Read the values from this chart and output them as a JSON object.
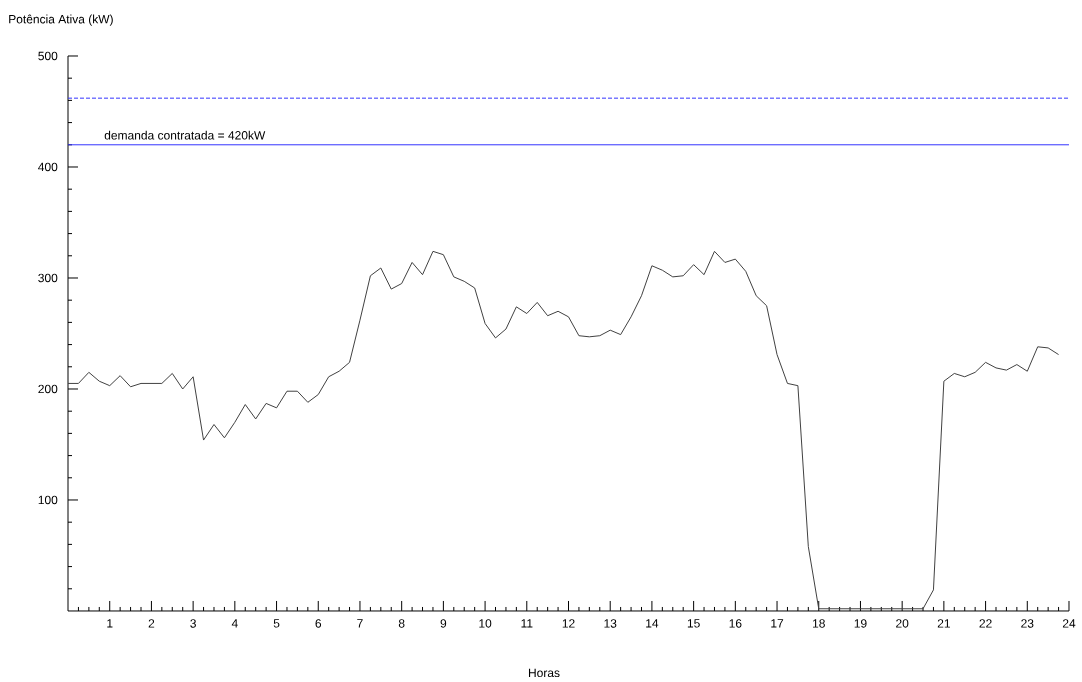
{
  "chart_data": {
    "type": "line",
    "ylabel": "Potência Ativa (kW)",
    "xlabel": "Horas",
    "x": [
      0,
      0.25,
      0.5,
      0.75,
      1,
      1.25,
      1.5,
      1.75,
      2,
      2.25,
      2.5,
      2.75,
      3,
      3.25,
      3.5,
      3.75,
      4,
      4.25,
      4.5,
      4.75,
      5,
      5.25,
      5.5,
      5.75,
      6,
      6.25,
      6.5,
      6.75,
      7,
      7.25,
      7.5,
      7.75,
      8,
      8.25,
      8.5,
      8.75,
      9,
      9.25,
      9.5,
      9.75,
      10,
      10.25,
      10.5,
      10.75,
      11,
      11.25,
      11.5,
      11.75,
      12,
      12.25,
      12.5,
      12.75,
      13,
      13.25,
      13.5,
      13.75,
      14,
      14.25,
      14.5,
      14.75,
      15,
      15.25,
      15.5,
      15.75,
      16,
      16.25,
      16.5,
      16.75,
      17,
      17.25,
      17.5,
      17.75,
      18,
      18.25,
      18.5,
      18.75,
      19,
      19.25,
      19.5,
      19.75,
      20,
      20.25,
      20.5,
      20.75,
      21,
      21.25,
      21.5,
      21.75,
      22,
      22.25,
      22.5,
      22.75,
      23,
      23.25,
      23.5,
      23.75
    ],
    "series": [
      {
        "color": "#404040",
        "values": [
          205,
          205,
          215,
          207,
          203,
          212,
          202,
          205,
          205,
          205,
          214,
          200,
          211,
          154,
          168,
          156,
          170,
          186,
          173,
          187,
          183,
          198,
          198,
          188,
          195,
          211,
          216,
          224,
          262,
          302,
          309,
          290,
          295,
          314,
          303,
          324,
          321,
          301,
          297,
          291,
          259,
          246,
          254,
          274,
          268,
          278,
          266,
          270,
          265,
          248,
          247,
          248,
          253,
          249,
          265,
          284,
          311,
          307,
          301,
          302,
          312,
          303,
          324,
          314,
          317,
          306,
          284,
          275,
          231,
          205,
          203,
          58,
          2,
          2,
          2,
          2,
          2,
          2,
          2,
          2,
          2,
          2,
          2,
          19,
          207,
          214,
          211,
          215,
          224,
          219,
          217,
          222,
          216,
          238,
          237,
          231
        ]
      }
    ],
    "xlim": [
      0,
      24
    ],
    "ylim": [
      0,
      500
    ],
    "xticks": [
      1,
      2,
      3,
      4,
      5,
      6,
      7,
      8,
      9,
      10,
      11,
      12,
      13,
      14,
      15,
      16,
      17,
      18,
      19,
      20,
      21,
      22,
      23,
      24,
      {
        "value": 0.25,
        "label": null
      },
      {
        "value": 0.5,
        "label": null
      },
      {
        "value": 0.75,
        "label": null
      },
      {
        "value": 1.25,
        "label": null
      },
      {
        "value": 1.5,
        "label": null
      },
      {
        "value": 1.75,
        "label": null
      },
      {
        "value": 2.25,
        "label": null
      },
      {
        "value": 2.5,
        "label": null
      },
      {
        "value": 2.75,
        "label": null
      },
      {
        "value": 3.25,
        "label": null
      },
      {
        "value": 3.5,
        "label": null
      },
      {
        "value": 3.75,
        "label": null
      },
      {
        "value": 4.25,
        "label": null
      },
      {
        "value": 4.5,
        "label": null
      },
      {
        "value": 4.75,
        "label": null
      },
      {
        "value": 5.25,
        "label": null
      },
      {
        "value": 5.5,
        "label": null
      },
      {
        "value": 5.75,
        "label": null
      },
      {
        "value": 6.25,
        "label": null
      },
      {
        "value": 6.5,
        "label": null
      },
      {
        "value": 6.75,
        "label": null
      },
      {
        "value": 7.25,
        "label": null
      },
      {
        "value": 7.5,
        "label": null
      },
      {
        "value": 7.75,
        "label": null
      },
      {
        "value": 8.25,
        "label": null
      },
      {
        "value": 8.5,
        "label": null
      },
      {
        "value": 8.75,
        "label": null
      },
      {
        "value": 9.25,
        "label": null
      },
      {
        "value": 9.5,
        "label": null
      },
      {
        "value": 9.75,
        "label": null
      },
      {
        "value": 10.25,
        "label": null
      },
      {
        "value": 10.5,
        "label": null
      },
      {
        "value": 10.75,
        "label": null
      },
      {
        "value": 11.25,
        "label": null
      },
      {
        "value": 11.5,
        "label": null
      },
      {
        "value": 11.75,
        "label": null
      },
      {
        "value": 12.25,
        "label": null
      },
      {
        "value": 12.5,
        "label": null
      },
      {
        "value": 12.75,
        "label": null
      },
      {
        "value": 13.25,
        "label": null
      },
      {
        "value": 13.5,
        "label": null
      },
      {
        "value": 13.75,
        "label": null
      },
      {
        "value": 14.25,
        "label": null
      },
      {
        "value": 14.5,
        "label": null
      },
      {
        "value": 14.75,
        "label": null
      },
      {
        "value": 15.25,
        "label": null
      },
      {
        "value": 15.5,
        "label": null
      },
      {
        "value": 15.75,
        "label": null
      },
      {
        "value": 16.25,
        "label": null
      },
      {
        "value": 16.5,
        "label": null
      },
      {
        "value": 16.75,
        "label": null
      },
      {
        "value": 17.25,
        "label": null
      },
      {
        "value": 17.5,
        "label": null
      },
      {
        "value": 17.75,
        "label": null
      },
      {
        "value": 18.25,
        "label": null
      },
      {
        "value": 18.5,
        "label": null
      },
      {
        "value": 18.75,
        "label": null
      },
      {
        "value": 19.25,
        "label": null
      },
      {
        "value": 19.5,
        "label": null
      },
      {
        "value": 19.75,
        "label": null
      },
      {
        "value": 20.25,
        "label": null
      },
      {
        "value": 20.5,
        "label": null
      },
      {
        "value": 20.75,
        "label": null
      },
      {
        "value": 21.25,
        "label": null
      },
      {
        "value": 21.5,
        "label": null
      },
      {
        "value": 21.75,
        "label": null
      },
      {
        "value": 22.25,
        "label": null
      },
      {
        "value": 22.5,
        "label": null
      },
      {
        "value": 22.75,
        "label": null
      },
      {
        "value": 23.25,
        "label": null
      },
      {
        "value": 23.5,
        "label": null
      },
      {
        "value": 23.75,
        "label": null
      }
    ],
    "yticks": [
      100,
      200,
      300,
      400,
      500,
      {
        "value": 20,
        "label": null
      },
      {
        "value": 40,
        "label": null
      },
      {
        "value": 60,
        "label": null
      },
      {
        "value": 80,
        "label": null
      },
      {
        "value": 120,
        "label": null
      },
      {
        "value": 140,
        "label": null
      },
      {
        "value": 160,
        "label": null
      },
      {
        "value": 180,
        "label": null
      },
      {
        "value": 220,
        "label": null
      },
      {
        "value": 240,
        "label": null
      },
      {
        "value": 260,
        "label": null
      },
      {
        "value": 280,
        "label": null
      },
      {
        "value": 320,
        "label": null
      },
      {
        "value": 340,
        "label": null
      },
      {
        "value": 360,
        "label": null
      },
      {
        "value": 380,
        "label": null
      },
      {
        "value": 420,
        "label": null
      },
      {
        "value": 440,
        "label": null
      },
      {
        "value": 460,
        "label": null
      },
      {
        "value": 480,
        "label": null
      }
    ],
    "ref_lines": [
      {
        "axis": "y",
        "value": 420,
        "label": "demanda contratada = 420kW",
        "color": "#3333ff",
        "line_style": "solid"
      },
      {
        "axis": "y",
        "value": 462,
        "color": "#3333ff",
        "line_style": "dashed"
      }
    ],
    "grid": false,
    "marker": "none",
    "line_style": "solid"
  }
}
